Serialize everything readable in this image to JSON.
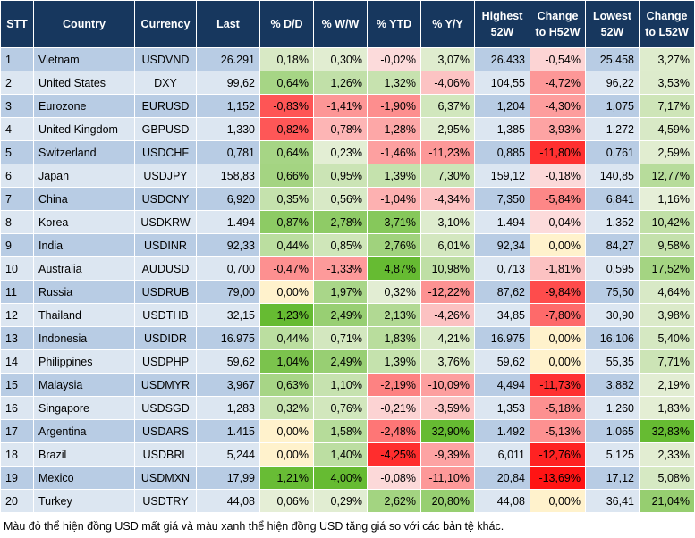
{
  "table": {
    "header": [
      "STT",
      "Country",
      "Currency",
      "Last",
      "% D/D",
      "% W/W",
      "% YTD",
      "% Y/Y",
      "Highest 52W",
      "Change to H52W",
      "Lowest 52W",
      "Change to L52W"
    ],
    "rows": [
      [
        "1",
        "Vietnam",
        "USDVND",
        "26.291",
        "0,18%",
        "0,30%",
        "-0,02%",
        "3,07%",
        "26.433",
        "-0,54%",
        "25.458",
        "3,27%"
      ],
      [
        "2",
        "United States",
        "DXY",
        "99,62",
        "0,64%",
        "1,26%",
        "1,32%",
        "-4,06%",
        "104,55",
        "-4,72%",
        "96,22",
        "3,53%"
      ],
      [
        "3",
        "Eurozone",
        "EURUSD",
        "1,152",
        "-0,83%",
        "-1,41%",
        "-1,90%",
        "6,37%",
        "1,204",
        "-4,30%",
        "1,075",
        "7,17%"
      ],
      [
        "4",
        "United Kingdom",
        "GBPUSD",
        "1,330",
        "-0,82%",
        "-0,78%",
        "-1,28%",
        "2,95%",
        "1,385",
        "-3,93%",
        "1,272",
        "4,59%"
      ],
      [
        "5",
        "Switzerland",
        "USDCHF",
        "0,781",
        "0,64%",
        "0,23%",
        "-1,46%",
        "-11,23%",
        "0,885",
        "-11,80%",
        "0,761",
        "2,59%"
      ],
      [
        "6",
        "Japan",
        "USDJPY",
        "158,83",
        "0,66%",
        "0,95%",
        "1,39%",
        "7,30%",
        "159,12",
        "-0,18%",
        "140,85",
        "12,77%"
      ],
      [
        "7",
        "China",
        "USDCNY",
        "6,920",
        "0,35%",
        "0,56%",
        "-1,04%",
        "-4,34%",
        "7,350",
        "-5,84%",
        "6,841",
        "1,16%"
      ],
      [
        "8",
        "Korea",
        "USDKRW",
        "1.494",
        "0,87%",
        "2,78%",
        "3,71%",
        "3,10%",
        "1.494",
        "-0,04%",
        "1.352",
        "10,42%"
      ],
      [
        "9",
        "India",
        "USDINR",
        "92,33",
        "0,44%",
        "0,85%",
        "2,76%",
        "6,01%",
        "92,34",
        "0,00%",
        "84,27",
        "9,58%"
      ],
      [
        "10",
        "Australia",
        "AUDUSD",
        "0,700",
        "-0,47%",
        "-1,33%",
        "4,87%",
        "10,98%",
        "0,713",
        "-1,81%",
        "0,595",
        "17,52%"
      ],
      [
        "11",
        "Russia",
        "USDRUB",
        "79,00",
        "0,00%",
        "1,97%",
        "0,32%",
        "-12,22%",
        "87,62",
        "-9,84%",
        "75,50",
        "4,64%"
      ],
      [
        "12",
        "Thailand",
        "USDTHB",
        "32,15",
        "1,23%",
        "2,49%",
        "2,13%",
        "-4,26%",
        "34,85",
        "-7,80%",
        "30,90",
        "3,98%"
      ],
      [
        "13",
        "Indonesia",
        "USDIDR",
        "16.975",
        "0,44%",
        "0,71%",
        "1,83%",
        "4,21%",
        "16.975",
        "0,00%",
        "16.106",
        "5,40%"
      ],
      [
        "14",
        "Philippines",
        "USDPHP",
        "59,62",
        "1,04%",
        "2,49%",
        "1,39%",
        "3,76%",
        "59,62",
        "0,00%",
        "55,35",
        "7,71%"
      ],
      [
        "15",
        "Malaysia",
        "USDMYR",
        "3,967",
        "0,63%",
        "1,10%",
        "-2,19%",
        "-10,09%",
        "4,494",
        "-11,73%",
        "3,882",
        "2,19%"
      ],
      [
        "16",
        "Singapore",
        "USDSGD",
        "1,283",
        "0,32%",
        "0,76%",
        "-0,21%",
        "-3,59%",
        "1,353",
        "-5,18%",
        "1,260",
        "1,83%"
      ],
      [
        "17",
        "Argentina",
        "USDARS",
        "1.415",
        "0,00%",
        "1,58%",
        "-2,48%",
        "32,90%",
        "1.492",
        "-5,13%",
        "1.065",
        "32,83%"
      ],
      [
        "18",
        "Brazil",
        "USDBRL",
        "5,244",
        "0,00%",
        "1,40%",
        "-4,25%",
        "-9,39%",
        "6,011",
        "-12,76%",
        "5,125",
        "2,33%"
      ],
      [
        "19",
        "Mexico",
        "USDMXN",
        "17,99",
        "1,21%",
        "4,00%",
        "-0,08%",
        "-11,10%",
        "20,84",
        "-13,69%",
        "17,12",
        "5,08%"
      ],
      [
        "20",
        "Turkey",
        "USDTRY",
        "44,08",
        "0,06%",
        "0,29%",
        "2,62%",
        "20,80%",
        "44,08",
        "0,00%",
        "36,41",
        "21,04%"
      ]
    ]
  },
  "footnote": "Màu đỏ thể hiện đồng USD mất giá và màu xanh thể hiện đồng USD tăng giá so với các bản tệ khác."
}
